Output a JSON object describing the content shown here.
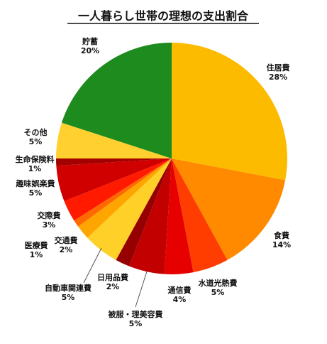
{
  "chart_data": {
    "type": "pie",
    "title": "一人暮らし世帯の理想の支出割合",
    "start_angle_deg": 0,
    "direction": "clockwise",
    "legend": "none",
    "slices": [
      {
        "label": "住居費",
        "value_label": "28%",
        "value": 28,
        "color": "#FDBB00"
      },
      {
        "label": "食費",
        "value_label": "14%",
        "value": 14,
        "color": "#FF8A00"
      },
      {
        "label": "水道光熱費",
        "value_label": "5%",
        "value": 5,
        "color": "#FF3D00"
      },
      {
        "label": "通信費",
        "value_label": "4%",
        "value": 4,
        "color": "#E60000"
      },
      {
        "label": "被服・理美容費",
        "value_label": "5%",
        "value": 5,
        "color": "#C20000"
      },
      {
        "label": "日用品費",
        "value_label": "2%",
        "value": 2,
        "color": "#960000"
      },
      {
        "label": "自動車関連費",
        "value_label": "5%",
        "value": 5,
        "color": "#FFD028"
      },
      {
        "label": "交通費",
        "value_label": "2%",
        "value": 2,
        "color": "#FFA500"
      },
      {
        "label": "医療費",
        "value_label": "1%",
        "value": 1,
        "color": "#FF6A00"
      },
      {
        "label": "交際費",
        "value_label": "3%",
        "value": 3,
        "color": "#FF1A00"
      },
      {
        "label": "趣味娯楽費",
        "value_label": "5%",
        "value": 5,
        "color": "#D00000"
      },
      {
        "label": "生命保険料",
        "value_label": "1%",
        "value": 1,
        "color": "#A30000"
      },
      {
        "label": "その他",
        "value_label": "5%",
        "value": 5,
        "color": "#FFD030"
      },
      {
        "label": "貯蓄",
        "value_label": "20%",
        "value": 20,
        "color": "#1E8B1E"
      }
    ]
  }
}
